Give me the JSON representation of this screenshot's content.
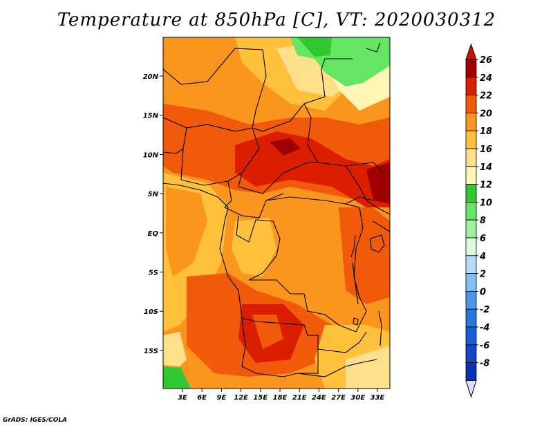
{
  "title": "Temperature at 850hPa [C], VT: 2020030312",
  "credit": "GrADS: IGES/COLA",
  "lat_labels": [
    "20N",
    "15N",
    "10N",
    "5N",
    "EQ",
    "5S",
    "10S",
    "15S"
  ],
  "lon_labels": [
    "3E",
    "6E",
    "9E",
    "12E",
    "15E",
    "18E",
    "21E",
    "24E",
    "27E",
    "30E",
    "33E"
  ],
  "colorbar": {
    "labels": [
      "26",
      "24",
      "22",
      "20",
      "18",
      "16",
      "14",
      "12",
      "10",
      "8",
      "6",
      "4",
      "2",
      "0",
      "-2",
      "-4",
      "-6",
      "-8"
    ],
    "colors": [
      "#a00000",
      "#dc1e00",
      "#f05a0a",
      "#fa961e",
      "#ffc03c",
      "#fee08c",
      "#fff5b4",
      "#32c832",
      "#64e664",
      "#a0f0a0",
      "#dcfadc",
      "#b4dcfa",
      "#82bef0",
      "#5096e6",
      "#2878dc",
      "#1e5adc",
      "#1446c8",
      "#0a32b4",
      "#000a64"
    ],
    "over_color": "#c81400",
    "under_color": "#dcdcff"
  }
}
